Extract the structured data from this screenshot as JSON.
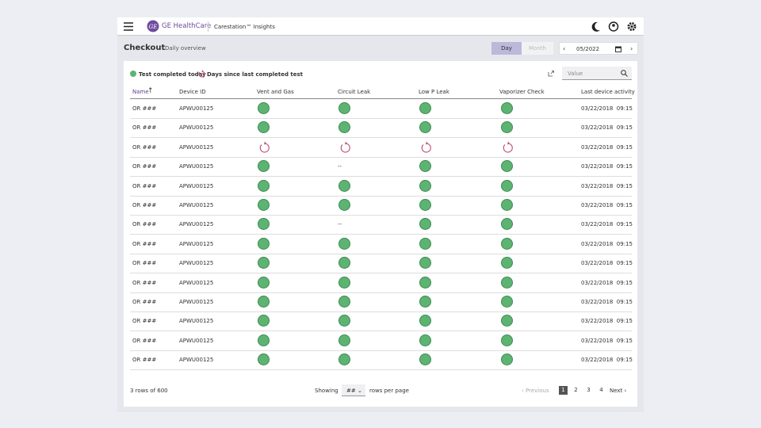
{
  "header": {
    "brand": "GE HealthCare",
    "app": "Carestation™ Insights"
  },
  "toolbar": {
    "title": "Checkout",
    "subtitle": "Daily overview",
    "views": [
      "Day",
      "Month"
    ],
    "date": "05/2022"
  },
  "legend": {
    "completed": "Test completed today",
    "days": "Days since last completed test"
  },
  "search": {
    "placeholder": "Value"
  },
  "table": {
    "columns": [
      "Name",
      "Device ID",
      "Vent and Gas",
      "Circuit Leak",
      "Low P Leak",
      "Vaporizer Check",
      "Last device activity"
    ],
    "rows": [
      [
        "OR ###",
        "APWU00125",
        "ok",
        "ok",
        "ok",
        "ok",
        "03/22/2018  09:15"
      ],
      [
        "OR ###",
        "APWU00125",
        "ok",
        "ok",
        "ok",
        "ok",
        "03/22/2018  09:15"
      ],
      [
        "OR ###",
        "APWU00125",
        "overdue",
        "overdue",
        "overdue",
        "overdue",
        "03/22/2018  09:15"
      ],
      [
        "OR ###",
        "APWU00125",
        "ok",
        "--",
        "ok",
        "ok",
        "03/22/2018  09:15"
      ],
      [
        "OR ###",
        "APWU00125",
        "ok",
        "ok",
        "ok",
        "ok",
        "03/22/2018  09:15"
      ],
      [
        "OR ###",
        "APWU00125",
        "ok",
        "ok",
        "ok",
        "ok",
        "03/22/2018  09:15"
      ],
      [
        "OR ###",
        "APWU00125",
        "ok",
        "--",
        "ok",
        "ok",
        "03/22/2018  09:15"
      ],
      [
        "OR ###",
        "APWU00125",
        "ok",
        "ok",
        "ok",
        "ok",
        "03/22/2018  09:15"
      ],
      [
        "OR ###",
        "APWU00125",
        "ok",
        "ok",
        "ok",
        "ok",
        "03/22/2018  09:15"
      ],
      [
        "OR ###",
        "APWU00125",
        "ok",
        "ok",
        "ok",
        "ok",
        "03/22/2018  09:15"
      ],
      [
        "OR ###",
        "APWU00125",
        "ok",
        "ok",
        "ok",
        "ok",
        "03/22/2018  09:15"
      ],
      [
        "OR ###",
        "APWU00125",
        "ok",
        "ok",
        "ok",
        "ok",
        "03/22/2018  09:15"
      ],
      [
        "OR ###",
        "APWU00125",
        "ok",
        "ok",
        "ok",
        "ok",
        "03/22/2018  09:15"
      ],
      [
        "OR ###",
        "APWU00125",
        "ok",
        "ok",
        "ok",
        "ok",
        "03/22/2018  09:15"
      ]
    ]
  },
  "footer": {
    "count": "3 rows of 600",
    "showing": "Showing",
    "per_page_value": "##",
    "per_page": "rows per page",
    "previous": "Previous",
    "pages": [
      "1",
      "2",
      "3",
      "4"
    ],
    "next": "Next"
  }
}
